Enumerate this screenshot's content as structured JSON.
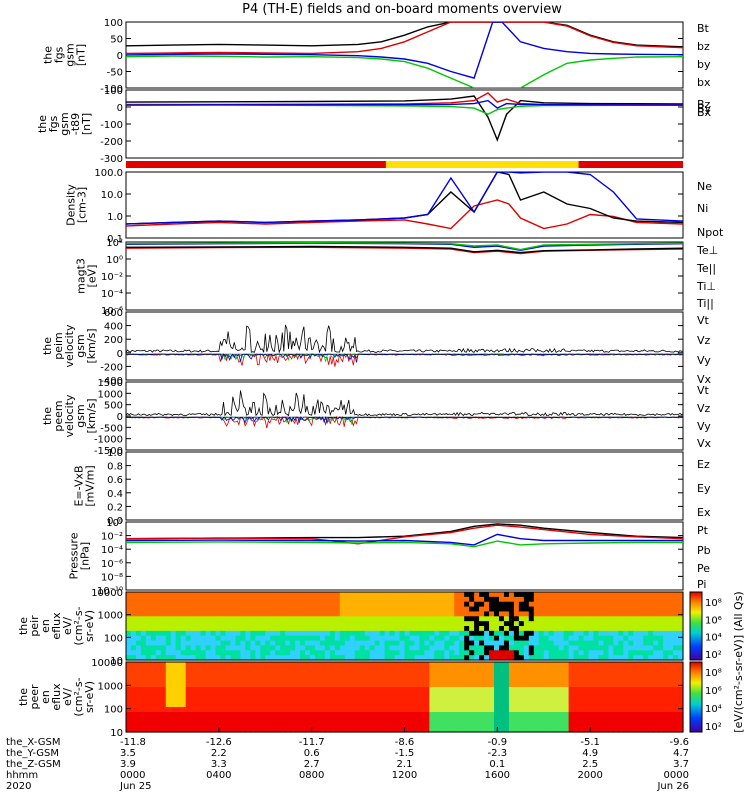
{
  "title": "P4 (TH-E) fields and on-board moments overview",
  "colors": {
    "black": "#000000",
    "red": "#e00000",
    "green": "#00c800",
    "blue": "#0000e0",
    "yellow": "#ffe000"
  },
  "chart_data": [
    {
      "type": "line",
      "id": "p1",
      "ylabel": [
        "the",
        "fgs",
        "gsm",
        "[nT]"
      ],
      "ylim": [
        -100,
        100
      ],
      "yticks": [
        "100",
        "50",
        "0",
        "-50",
        "-100"
      ],
      "legend": [
        {
          "label": "Bt",
          "color": "#000000"
        },
        {
          "label": "bz",
          "color": "#e00000"
        },
        {
          "label": "by",
          "color": "#00c800"
        },
        {
          "label": "bx",
          "color": "#0000e0"
        }
      ],
      "x": [
        0,
        2,
        4,
        6,
        8,
        10,
        11,
        12,
        13,
        14,
        15,
        15.8,
        16.2,
        17,
        18,
        19,
        20,
        21,
        22,
        24
      ],
      "series": [
        {
          "name": "Bt",
          "values": [
            28,
            30,
            32,
            30,
            28,
            32,
            40,
            60,
            85,
            100,
            100,
            100,
            100,
            100,
            100,
            90,
            60,
            40,
            30,
            25
          ]
        },
        {
          "name": "bz",
          "values": [
            5,
            6,
            8,
            6,
            5,
            10,
            20,
            40,
            70,
            100,
            100,
            100,
            100,
            100,
            100,
            88,
            58,
            38,
            28,
            22
          ]
        },
        {
          "name": "by",
          "values": [
            -5,
            -3,
            -4,
            -6,
            -5,
            -8,
            -12,
            -20,
            -40,
            -70,
            -100,
            -100,
            -100,
            -100,
            -60,
            -25,
            -15,
            -10,
            -6,
            -5
          ]
        },
        {
          "name": "bx",
          "values": [
            0,
            2,
            3,
            2,
            1,
            -2,
            -6,
            -12,
            -25,
            -50,
            -70,
            100,
            100,
            40,
            20,
            10,
            5,
            3,
            2,
            1
          ]
        }
      ]
    },
    {
      "type": "line",
      "id": "p2",
      "ylabel": [
        "the",
        "fgs",
        "gsm",
        "-t89",
        "[nT]"
      ],
      "ylim": [
        -350,
        100
      ],
      "yticks": [
        "100",
        "0",
        "-100",
        "-200",
        "-300"
      ],
      "legend": [
        {
          "label": "Bz",
          "color": "#e00000"
        },
        {
          "label": "By",
          "color": "#00c800"
        },
        {
          "label": "Bx",
          "color": "#0000e0"
        }
      ],
      "x": [
        0,
        4,
        8,
        12,
        14,
        15,
        15.6,
        16,
        16.4,
        17,
        18,
        20,
        24
      ],
      "series": [
        {
          "name": "Bt",
          "values": [
            20,
            22,
            24,
            28,
            40,
            60,
            -80,
            -230,
            -60,
            30,
            15,
            10,
            8
          ]
        },
        {
          "name": "Bz",
          "values": [
            5,
            5,
            6,
            8,
            15,
            30,
            80,
            20,
            40,
            10,
            5,
            3,
            2
          ]
        },
        {
          "name": "By",
          "values": [
            0,
            0,
            -2,
            -5,
            -10,
            -20,
            -60,
            -30,
            -20,
            -8,
            -3,
            -2,
            -1
          ]
        },
        {
          "name": "Bx",
          "values": [
            0,
            2,
            2,
            3,
            5,
            10,
            30,
            -20,
            10,
            5,
            3,
            2,
            1
          ]
        }
      ]
    },
    {
      "type": "bar",
      "id": "mode-bar",
      "segments": [
        {
          "from": 0,
          "to": 11.2,
          "color": "#e00000"
        },
        {
          "from": 11.2,
          "to": 19.5,
          "color": "#ffe000"
        },
        {
          "from": 19.5,
          "to": 24,
          "color": "#e00000"
        }
      ]
    },
    {
      "type": "line",
      "id": "p3",
      "yscale": "log",
      "ylabel": [
        "Density",
        "[cm-3]"
      ],
      "ylim": [
        0.1,
        200
      ],
      "yticks": [
        "100.0",
        "10.0",
        "1.0",
        "0.1"
      ],
      "legend": [
        {
          "label": "Ne",
          "color": "#e00000"
        },
        {
          "label": "Ni",
          "color": "#000000"
        },
        {
          "label": "Npot",
          "color": "#0000e0"
        }
      ],
      "x": [
        0,
        2,
        4,
        6,
        8,
        10,
        12,
        13,
        14,
        15,
        16,
        16.5,
        17,
        18,
        19,
        20,
        21,
        22,
        24
      ],
      "series": [
        {
          "name": "Ne",
          "values": [
            0.4,
            0.5,
            0.6,
            0.5,
            0.6,
            0.7,
            0.8,
            0.5,
            0.3,
            4,
            8,
            5,
            1,
            0.3,
            0.5,
            1.5,
            1.2,
            0.6,
            0.5
          ]
        },
        {
          "name": "Ni",
          "values": [
            0.5,
            0.6,
            0.7,
            0.6,
            0.7,
            0.8,
            1,
            1.5,
            20,
            2,
            200,
            150,
            8,
            20,
            5,
            3,
            1,
            0.7,
            0.6
          ]
        },
        {
          "name": "Npot",
          "values": [
            0.5,
            0.6,
            0.7,
            0.6,
            0.7,
            0.8,
            1,
            1.5,
            100,
            2,
            200,
            200,
            180,
            200,
            200,
            150,
            20,
            0.9,
            0.7
          ]
        }
      ]
    },
    {
      "type": "line",
      "id": "p4",
      "yscale": "log",
      "ylabel": [
        "magt3",
        "[eV]"
      ],
      "ylim": [
        1e-06,
        1000.0
      ],
      "yticks": [
        "10²",
        "10⁰",
        "10⁻²",
        "10⁻⁴",
        "10⁻⁶"
      ],
      "legend": [
        {
          "label": "Te⊥",
          "color": "#e00000"
        },
        {
          "label": "Te||",
          "color": "#000000"
        },
        {
          "label": "Ti⊥",
          "color": "#0000e0"
        },
        {
          "label": "Ti||",
          "color": "#00c800"
        }
      ],
      "x": [
        0,
        4,
        8,
        12,
        14,
        15,
        16,
        17,
        18,
        20,
        22,
        24
      ],
      "series": [
        {
          "name": "Te⊥",
          "values": [
            150,
            180,
            200,
            150,
            120,
            40,
            60,
            30,
            60,
            80,
            100,
            120
          ]
        },
        {
          "name": "Te||",
          "values": [
            200,
            220,
            250,
            200,
            150,
            50,
            80,
            40,
            70,
            90,
            120,
            150
          ]
        },
        {
          "name": "Ti⊥",
          "values": [
            500,
            600,
            700,
            600,
            500,
            200,
            300,
            80,
            300,
            400,
            500,
            600
          ]
        },
        {
          "name": "Ti||",
          "values": [
            600,
            700,
            800,
            700,
            600,
            300,
            400,
            100,
            400,
            500,
            600,
            700
          ]
        }
      ]
    },
    {
      "type": "line",
      "id": "p5",
      "ylabel": [
        "the",
        "peim",
        "velocity",
        "gsm",
        "[km/s]"
      ],
      "ylim": [
        -400,
        650
      ],
      "yticks": [
        "600",
        "400",
        "200",
        "0",
        "-200",
        "-400"
      ],
      "legend": [
        {
          "label": "Vt",
          "color": "#000000"
        },
        {
          "label": "Vz",
          "color": "#e00000"
        },
        {
          "label": "Vy",
          "color": "#00c800"
        },
        {
          "label": "Vx",
          "color": "#0000e0"
        }
      ]
    },
    {
      "type": "line",
      "id": "p6",
      "ylabel": [
        "the",
        "peem",
        "velocity",
        "gsm",
        "[km/s]"
      ],
      "ylim": [
        -1500,
        1600
      ],
      "yticks": [
        "1500",
        "1000",
        "500",
        "0",
        "-500",
        "-1000",
        "-1500"
      ],
      "legend": [
        {
          "label": "Vt",
          "color": "#000000"
        },
        {
          "label": "Vz",
          "color": "#e00000"
        },
        {
          "label": "Vy",
          "color": "#00c800"
        },
        {
          "label": "Vx",
          "color": "#0000e0"
        }
      ]
    },
    {
      "type": "line",
      "id": "p7",
      "ylabel": [
        "E=-VxB",
        "[mV/m]"
      ],
      "ylim": [
        0,
        1
      ],
      "yticks": [
        "1.0",
        "0.8",
        "0.6",
        "0.4",
        "0.2",
        "0.0"
      ],
      "legend": [
        {
          "label": "Ez",
          "color": "#e00000"
        },
        {
          "label": "Ey",
          "color": "#00c800"
        },
        {
          "label": "Ex",
          "color": "#0000e0"
        }
      ]
    },
    {
      "type": "line",
      "id": "p8",
      "yscale": "log",
      "ylabel": [
        "Pressure",
        "[nPa]"
      ],
      "ylim": [
        1e-10,
        10
      ],
      "yticks": [
        "10⁰",
        "10⁻²",
        "10⁻⁴",
        "10⁻⁶",
        "10⁻⁸",
        "10⁻¹⁰"
      ],
      "legend": [
        {
          "label": "Pt",
          "color": "#000000"
        },
        {
          "label": "Pb",
          "color": "#e00000"
        },
        {
          "label": "Pe",
          "color": "#00c800"
        },
        {
          "label": "Pi",
          "color": "#0000e0"
        }
      ],
      "x": [
        0,
        4,
        8,
        10,
        12,
        14,
        15,
        16,
        17,
        18,
        20,
        22,
        24
      ],
      "series": [
        {
          "name": "Pt",
          "values": [
            0.02,
            0.025,
            0.03,
            0.03,
            0.05,
            0.3,
            2,
            5,
            3,
            1,
            0.2,
            0.05,
            0.03
          ]
        },
        {
          "name": "Pb",
          "values": [
            0.02,
            0.025,
            0.02,
            0.003,
            0.04,
            0.2,
            1,
            3,
            1.5,
            0.6,
            0.1,
            0.04,
            0.02
          ]
        },
        {
          "name": "Pe",
          "values": [
            0.005,
            0.006,
            0.005,
            0.004,
            0.005,
            0.003,
            0.001,
            0.008,
            0.002,
            0.003,
            0.004,
            0.005,
            0.005
          ]
        },
        {
          "name": "Pi",
          "values": [
            0.01,
            0.012,
            0.01,
            0.008,
            0.01,
            0.005,
            0.002,
            0.1,
            0.02,
            0.01,
            0.01,
            0.01,
            0.01
          ]
        }
      ]
    },
    {
      "type": "heatmap",
      "id": "p9",
      "yscale": "log",
      "ylabel": [
        "the",
        "peir",
        "en",
        "eflux",
        "eV/",
        "(cm²-s-",
        "sr-eV)"
      ],
      "ylim": [
        5,
        20000
      ],
      "yticks": [
        "10000",
        "1000",
        "100",
        "10"
      ]
    },
    {
      "type": "heatmap",
      "id": "p10",
      "yscale": "log",
      "ylabel": [
        "the",
        "peer",
        "en",
        "eflux",
        "eV/",
        "(cm²-s-",
        "sr-eV)"
      ],
      "ylim": [
        5,
        20000
      ],
      "yticks": [
        "10000",
        "1000",
        "100",
        "10"
      ]
    }
  ],
  "colorbar": {
    "label": "[eV/(cm²-s-sr-eV)] (All Qs)",
    "ticks_top": [
      "10⁸",
      "10⁶",
      "10⁴",
      "10²"
    ],
    "ticks_bottom": [
      "10⁸",
      "10⁶",
      "10⁴",
      "10²"
    ]
  },
  "xaxis": {
    "tick_hours": [
      0,
      4,
      8,
      12,
      16,
      20,
      24
    ],
    "rows": [
      {
        "label": "the_X-GSM",
        "values": [
          "-11.8",
          "-12.6",
          "-11.7",
          "-8.6",
          "-0.9",
          "-5.1",
          "-9.6"
        ]
      },
      {
        "label": "the_Y-GSM",
        "values": [
          "3.5",
          "2.2",
          "0.6",
          "-1.5",
          "-2.3",
          "4.9",
          "4.7"
        ]
      },
      {
        "label": "the_Z-GSM",
        "values": [
          "3.9",
          "3.3",
          "2.7",
          "2.1",
          "0.1",
          "2.5",
          "3.7"
        ]
      },
      {
        "label": "hhmm",
        "values": [
          "0000",
          "0400",
          "0800",
          "1200",
          "1600",
          "2000",
          "0000"
        ]
      },
      {
        "label": "2020",
        "values": [
          "Jun 25",
          "",
          "",
          "",
          "",
          "",
          "Jun 26"
        ]
      }
    ]
  }
}
